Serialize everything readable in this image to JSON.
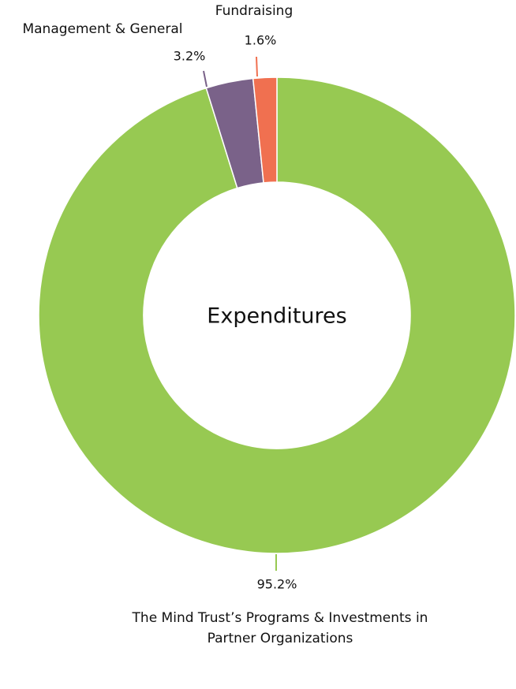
{
  "chart_data": {
    "type": "donut",
    "title": "Expenditures",
    "categories": [
      "The Mind Trust’s Programs & Investments in Partner Organizations",
      "Management & General",
      "Fundraising"
    ],
    "values": [
      95.2,
      3.2,
      1.6
    ],
    "value_labels": [
      "95.2%",
      "3.2%",
      "1.6%"
    ],
    "colors": [
      "#97c952",
      "#7a6289",
      "#f07050"
    ]
  }
}
